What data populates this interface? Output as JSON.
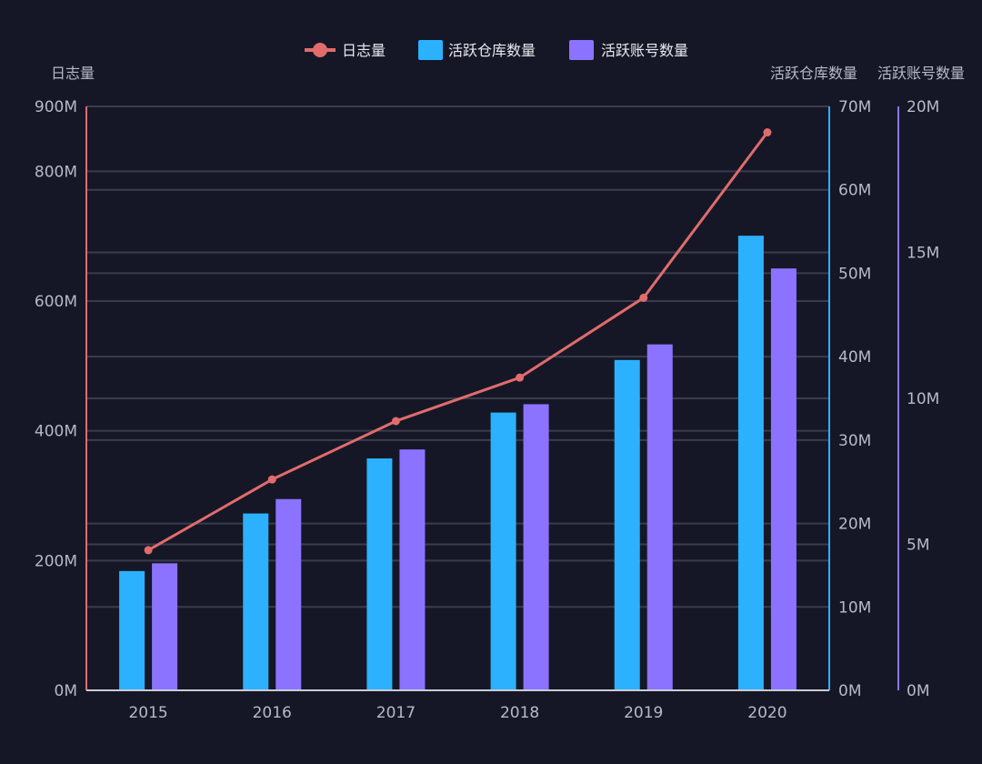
{
  "colors": {
    "background": "#161726",
    "grid": "#3a3c4d",
    "axis_text": "#b7b9c6",
    "log_line": "#e06c6c",
    "repo_bar": "#2cb1ff",
    "account_bar": "#8c73ff",
    "x_axis_line": "#c9cbd6"
  },
  "chart_data": {
    "type": "bar",
    "categories": [
      "2015",
      "2016",
      "2017",
      "2018",
      "2019",
      "2020"
    ],
    "legend": {
      "position": "top-center",
      "items": [
        "日志量",
        "活跃仓库数量",
        "活跃账号数量"
      ]
    },
    "series": [
      {
        "name": "日志量",
        "type": "line",
        "axis": "left",
        "values": [
          216,
          325,
          415,
          482,
          605,
          860
        ]
      },
      {
        "name": "活跃仓库数量",
        "type": "bar",
        "axis": "right1",
        "values": [
          14.3,
          21.2,
          27.8,
          33.3,
          39.6,
          54.5
        ]
      },
      {
        "name": "活跃账号数量",
        "type": "bar",
        "axis": "right2",
        "values": [
          4.35,
          6.55,
          8.25,
          9.8,
          11.85,
          14.45
        ]
      }
    ],
    "axes": {
      "left": {
        "label": "日志量",
        "min": 0,
        "max": 900,
        "ticks": [
          0,
          200,
          400,
          600,
          800,
          900
        ],
        "tick_labels": [
          "0M",
          "200M",
          "400M",
          "600M",
          "800M",
          "900M"
        ]
      },
      "right1": {
        "label": "活跃仓库数量",
        "min": 0,
        "max": 70,
        "ticks": [
          0,
          10,
          20,
          30,
          40,
          50,
          60,
          70
        ],
        "tick_labels": [
          "0M",
          "10M",
          "20M",
          "30M",
          "40M",
          "50M",
          "60M",
          "70M"
        ]
      },
      "right2": {
        "label": "活跃账号数量",
        "min": 0,
        "max": 20,
        "ticks": [
          0,
          5,
          10,
          15,
          20
        ],
        "tick_labels": [
          "0M",
          "5M",
          "10M",
          "15M",
          "20M"
        ]
      }
    },
    "grid": true
  }
}
